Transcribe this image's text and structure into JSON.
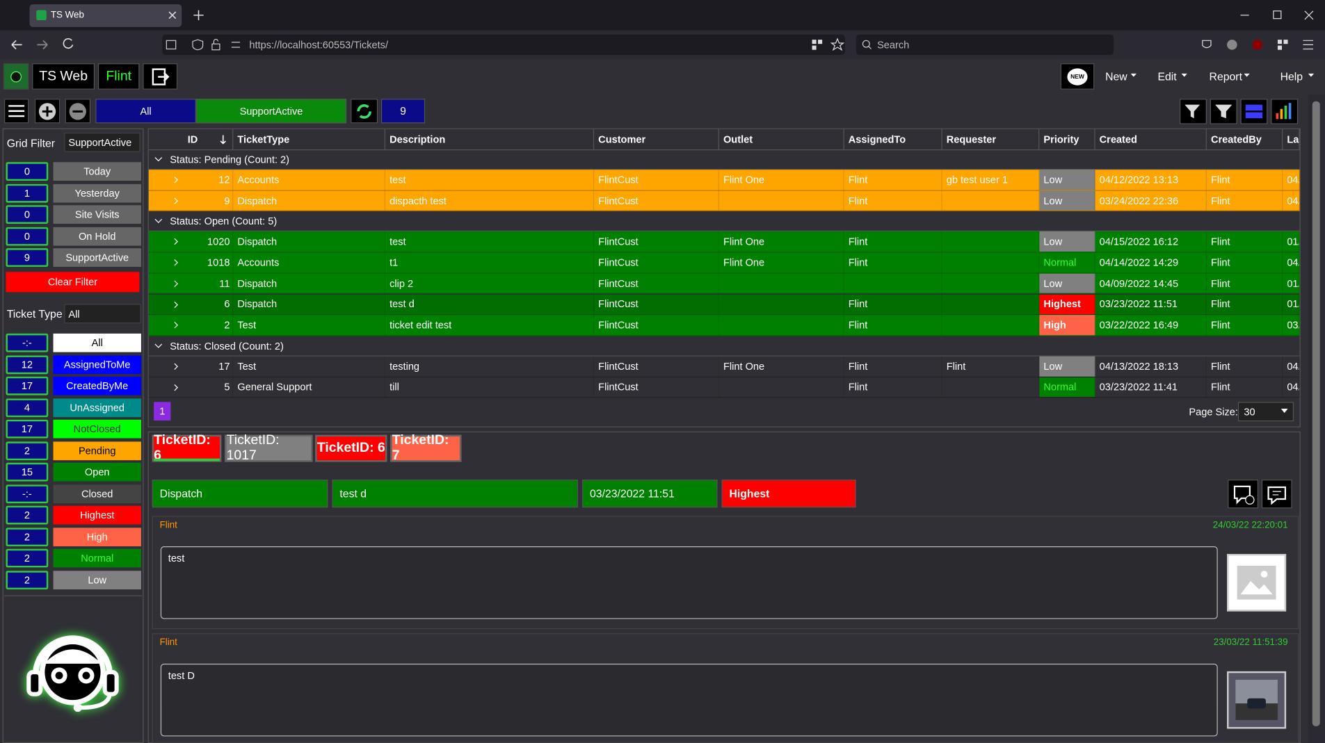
{
  "browser": {
    "tab_title": "TS Web",
    "url": "https://localhost:60553/Tickets/",
    "search": "Search"
  },
  "navbar": {
    "brand": "TS Web",
    "user": "Flint",
    "new_badge": "NEW",
    "menus": [
      "New",
      "Edit",
      "Report",
      "Help"
    ]
  },
  "toolbar": {
    "views": [
      "All",
      "SupportActive"
    ],
    "count": "9"
  },
  "sidebar": {
    "grid_filter_label": "Grid Filter",
    "grid_filter_value": "SupportActive",
    "filters": [
      {
        "count": "0",
        "label": "Today"
      },
      {
        "count": "1",
        "label": "Yesterday"
      },
      {
        "count": "0",
        "label": "Site Visits"
      },
      {
        "count": "0",
        "label": "On Hold"
      },
      {
        "count": "9",
        "label": "SupportActive"
      }
    ],
    "clear": "Clear Filter",
    "ticket_type_label": "Ticket Type",
    "ticket_type_value": "All",
    "types": [
      {
        "count": "-:-",
        "label": "All"
      },
      {
        "count": "12",
        "label": "AssignedToMe"
      },
      {
        "count": "17",
        "label": "CreatedByMe"
      },
      {
        "count": "4",
        "label": "UnAssigned"
      },
      {
        "count": "17",
        "label": "NotClosed"
      },
      {
        "count": "2",
        "label": "Pending"
      },
      {
        "count": "15",
        "label": "Open"
      },
      {
        "count": "-:-",
        "label": "Closed"
      },
      {
        "count": "2",
        "label": "Highest"
      },
      {
        "count": "2",
        "label": "High"
      },
      {
        "count": "2",
        "label": "Normal"
      },
      {
        "count": "2",
        "label": "Low"
      }
    ]
  },
  "grid": {
    "columns": [
      "ID",
      "TicketType",
      "Description",
      "Customer",
      "Outlet",
      "AssignedTo",
      "Requester",
      "Priority",
      "Created",
      "CreatedBy",
      "La"
    ],
    "groups": [
      {
        "title": "Status: Pending (Count: 2)",
        "rows": [
          [
            "12",
            "Accounts",
            "test",
            "FlintCust",
            "Flint One",
            "Flint",
            "gb test user 1",
            "Low",
            "04/12/2022 13:13",
            "Flint",
            "04/"
          ],
          [
            "9",
            "Dispatch",
            "dispacth test",
            "FlintCust",
            null,
            "Flint",
            null,
            "Low",
            "03/24/2022 22:36",
            "Flint",
            "04/"
          ]
        ]
      },
      {
        "title": "Status: Open (Count: 5)",
        "rows": [
          [
            "1020",
            "Dispatch",
            "test",
            "FlintCust",
            "Flint One",
            "Flint",
            null,
            "Low",
            "04/15/2022 16:12",
            "Flint",
            "01/"
          ],
          [
            "1018",
            "Accounts",
            "t1",
            "FlintCust",
            "Flint One",
            "Flint",
            null,
            "Normal",
            "04/14/2022 14:29",
            "Flint",
            "04/"
          ],
          [
            "11",
            "Dispatch",
            "clip 2",
            "FlintCust",
            null,
            null,
            null,
            "Low",
            "04/09/2022 14:45",
            "Flint",
            "01/"
          ],
          [
            "6",
            "Dispatch",
            "test d",
            "FlintCust",
            null,
            "Flint",
            null,
            "Highest",
            "03/23/2022 11:51",
            "Flint",
            "01/"
          ],
          [
            "2",
            "Test",
            "ticket edit test",
            "FlintCust",
            null,
            "Flint",
            null,
            "High",
            "03/22/2022 16:49",
            "Flint",
            "03/"
          ]
        ]
      },
      {
        "title": "Status: Closed (Count: 2)",
        "rows": [
          [
            "17",
            "Test",
            "testing",
            "FlintCust",
            "Flint One",
            "Flint",
            "Flint",
            "Low",
            "04/13/2022 18:13",
            "Flint",
            "04/"
          ],
          [
            "5",
            "General Support",
            "till",
            "FlintCust",
            null,
            "Flint",
            null,
            "Normal",
            "03/23/2022 11:41",
            "Flint",
            "04/"
          ]
        ]
      }
    ]
  },
  "pager": {
    "page": "1",
    "page_size_label": "Page Size:",
    "page_size": "30"
  },
  "tabs": [
    "TicketID: 6",
    "TicketID: 1017",
    "TicketID: 6",
    "TicketID: 7"
  ],
  "detail": {
    "fields": [
      "Dispatch",
      "test d",
      "03/23/2022 11:51",
      "Highest"
    ]
  },
  "notes": [
    {
      "author": "Flint",
      "date": "24/03/22 22:20:01",
      "text": "test"
    },
    {
      "author": "Flint",
      "date": "23/03/22 11:51:39",
      "text": "test D"
    }
  ]
}
